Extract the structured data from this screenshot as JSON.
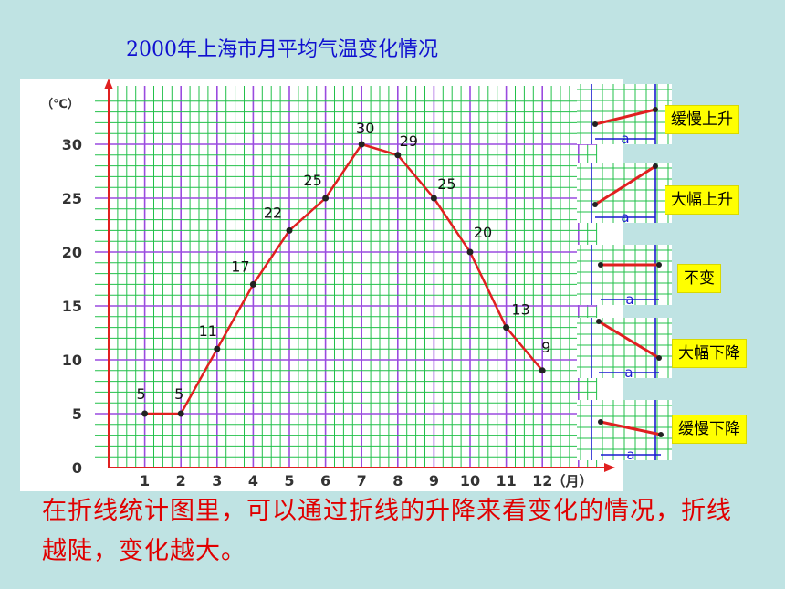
{
  "title": "2000年上海市月平均气温变化情况",
  "chart_data": {
    "type": "line",
    "title": "2000年上海市月平均气温变化情况",
    "categories": [
      "1",
      "2",
      "3",
      "4",
      "5",
      "6",
      "7",
      "8",
      "9",
      "10",
      "11",
      "12"
    ],
    "x_unit": "（月）",
    "y_unit": "（℃）",
    "y_ticks": [
      "0",
      "5",
      "10",
      "15",
      "20",
      "25",
      "30"
    ],
    "ylim": [
      0,
      34
    ],
    "grid": true,
    "series": [
      {
        "values": [
          5,
          5,
          11,
          17,
          22,
          25,
          30,
          29,
          25,
          20,
          13,
          9
        ]
      }
    ],
    "line_color": "#e02020",
    "grid_color": "#22c04a",
    "minor_grid_color": "#9a4adf"
  },
  "legend_items": [
    {
      "label": "缓慢上升"
    },
    {
      "label": "大幅上升"
    },
    {
      "label": "不变"
    },
    {
      "label": "大幅下降"
    },
    {
      "label": "缓慢下降"
    }
  ],
  "interval_label": "a",
  "caption": "在折线统计图里，可以通过折线的升降来看变化的情况，折线越陡，变化越大。"
}
